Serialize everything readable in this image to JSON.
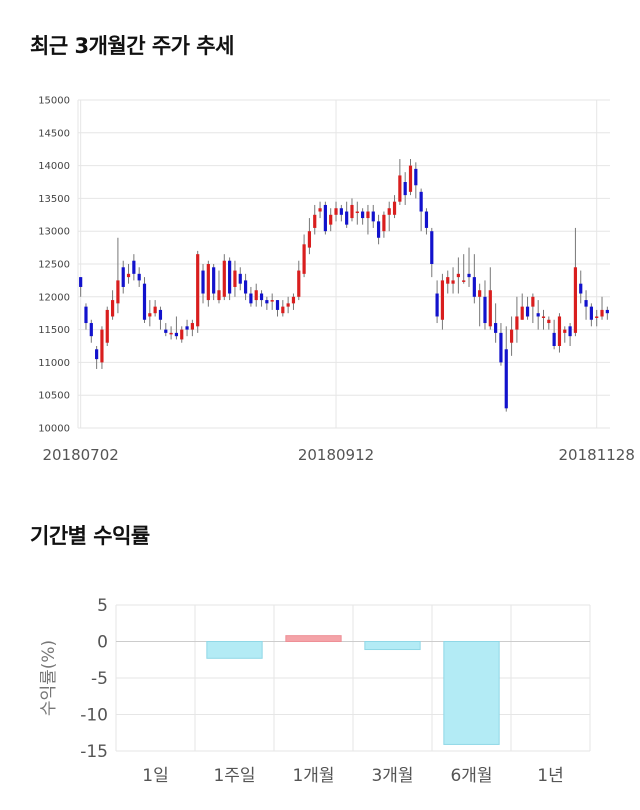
{
  "titles": {
    "candle": "최근 3개월간 주가 추세",
    "returns": "기간별 수익률"
  },
  "colors": {
    "up": "#d91e1e",
    "down": "#1212cc",
    "grid": "#e6e6e6",
    "bar_pos": "#f4a3a8",
    "bar_neg": "#b3ebf5",
    "bar_neg_stroke": "#8fd7e6"
  },
  "chart_data": [
    {
      "type": "candlestick",
      "title": "최근 3개월간 주가 추세",
      "yticks": [
        10000,
        10500,
        11000,
        11500,
        12000,
        12500,
        13000,
        13500,
        14000,
        14500,
        15000
      ],
      "ylim": [
        10000,
        15000
      ],
      "xtick_labels": [
        {
          "index": 0,
          "label": "20180702"
        },
        {
          "index": 48,
          "label": "20180912"
        },
        {
          "index": 97,
          "label": "20181128"
        }
      ],
      "grid": true,
      "candles": [
        [
          12300,
          12150,
          12300,
          12000
        ],
        [
          11850,
          11600,
          11900,
          11500
        ],
        [
          11600,
          11400,
          11650,
          11300
        ],
        [
          11200,
          11050,
          11250,
          10900
        ],
        [
          11000,
          11500,
          11550,
          10900
        ],
        [
          11300,
          11800,
          11850,
          11250
        ],
        [
          11700,
          11950,
          12100,
          11650
        ],
        [
          11900,
          12250,
          12900,
          11750
        ],
        [
          12450,
          12150,
          12550,
          12050
        ],
        [
          12300,
          12350,
          12500,
          12200
        ],
        [
          12550,
          12350,
          12650,
          12250
        ],
        [
          12350,
          12250,
          12450,
          12150
        ],
        [
          12200,
          11650,
          12300,
          11600
        ],
        [
          11700,
          11750,
          11950,
          11550
        ],
        [
          11750,
          11850,
          11950,
          11700
        ],
        [
          11800,
          11650,
          11850,
          11500
        ],
        [
          11500,
          11450,
          11600,
          11400
        ],
        [
          11450,
          11450,
          11550,
          11350
        ],
        [
          11450,
          11400,
          11700,
          11350
        ],
        [
          11350,
          11500,
          11550,
          11300
        ],
        [
          11550,
          11500,
          11650,
          11400
        ],
        [
          11500,
          11600,
          11650,
          11400
        ],
        [
          11550,
          12650,
          12700,
          11450
        ],
        [
          12400,
          12050,
          12500,
          11900
        ],
        [
          11950,
          12500,
          12550,
          11850
        ],
        [
          12450,
          12050,
          12500,
          11950
        ],
        [
          11950,
          12100,
          12400,
          11900
        ],
        [
          12000,
          12550,
          12650,
          11950
        ],
        [
          12550,
          12050,
          12600,
          11950
        ],
        [
          12150,
          12400,
          12550,
          12000
        ],
        [
          12350,
          12200,
          12450,
          12100
        ],
        [
          12250,
          12050,
          12350,
          11950
        ],
        [
          12050,
          11900,
          12150,
          11850
        ],
        [
          11950,
          12100,
          12200,
          11850
        ],
        [
          12050,
          11950,
          12100,
          11850
        ],
        [
          11950,
          11900,
          12000,
          11800
        ],
        [
          11950,
          11950,
          12050,
          11800
        ],
        [
          11950,
          11800,
          11950,
          11700
        ],
        [
          11750,
          11850,
          11950,
          11700
        ],
        [
          11850,
          11900,
          12000,
          11750
        ],
        [
          11900,
          12000,
          12050,
          11800
        ],
        [
          12000,
          12400,
          12550,
          11950
        ],
        [
          12350,
          12800,
          12950,
          12300
        ],
        [
          12750,
          13000,
          13200,
          12650
        ],
        [
          13050,
          13250,
          13400,
          12950
        ],
        [
          13300,
          13350,
          13450,
          13200
        ],
        [
          13400,
          13000,
          13450,
          12950
        ],
        [
          13100,
          13250,
          13350,
          13000
        ],
        [
          13250,
          13350,
          13450,
          13150
        ],
        [
          13350,
          13250,
          13400,
          13150
        ],
        [
          13300,
          13100,
          13450,
          13050
        ],
        [
          13200,
          13400,
          13500,
          13150
        ],
        [
          13300,
          13300,
          13450,
          13100
        ],
        [
          13300,
          13200,
          13350,
          13100
        ],
        [
          13200,
          13300,
          13400,
          12950
        ],
        [
          13300,
          13150,
          13400,
          13050
        ],
        [
          13150,
          12900,
          13250,
          12800
        ],
        [
          13000,
          13250,
          13300,
          12900
        ],
        [
          13250,
          13350,
          13450,
          13000
        ],
        [
          13250,
          13450,
          13550,
          13200
        ],
        [
          13450,
          13850,
          14100,
          13400
        ],
        [
          13750,
          13550,
          13900,
          13400
        ],
        [
          13600,
          14000,
          14100,
          13550
        ],
        [
          13950,
          13700,
          14050,
          13500
        ],
        [
          13600,
          13300,
          13650,
          13000
        ],
        [
          13300,
          13050,
          13350,
          12950
        ],
        [
          13000,
          12500,
          13050,
          12300
        ],
        [
          12050,
          11700,
          12250,
          11600
        ],
        [
          11650,
          12250,
          12350,
          11500
        ],
        [
          12200,
          12300,
          12400,
          12050
        ],
        [
          12200,
          12250,
          12450,
          12050
        ],
        [
          12300,
          12350,
          12600,
          12050
        ],
        [
          12250,
          12250,
          12650,
          12200
        ],
        [
          12350,
          12300,
          12750,
          12150
        ],
        [
          12300,
          12000,
          12650,
          11900
        ],
        [
          12000,
          12100,
          12200,
          11550
        ],
        [
          12000,
          11600,
          12250,
          11500
        ],
        [
          11550,
          12100,
          12450,
          11500
        ],
        [
          11600,
          11450,
          11900,
          11300
        ],
        [
          11450,
          11000,
          11600,
          10950
        ],
        [
          11200,
          10300,
          11550,
          10250
        ],
        [
          11300,
          11500,
          11700,
          11100
        ],
        [
          11500,
          11700,
          12000,
          11300
        ],
        [
          11650,
          11850,
          12050,
          11650
        ],
        [
          11850,
          11700,
          12000,
          11650
        ],
        [
          11850,
          12000,
          12050,
          11600
        ],
        [
          11750,
          11700,
          11950,
          11500
        ],
        [
          11700,
          11700,
          11800,
          11500
        ],
        [
          11600,
          11650,
          11700,
          11500
        ],
        [
          11450,
          11250,
          11650,
          11200
        ],
        [
          11250,
          11700,
          11750,
          11150
        ],
        [
          11450,
          11500,
          11550,
          11300
        ],
        [
          11550,
          11400,
          11600,
          11250
        ],
        [
          11450,
          12450,
          13050,
          11400
        ],
        [
          12200,
          12050,
          12400,
          11900
        ],
        [
          11950,
          11850,
          12100,
          11650
        ],
        [
          11850,
          11650,
          11900,
          11550
        ],
        [
          11700,
          11700,
          11800,
          11550
        ],
        [
          11700,
          11800,
          12000,
          11650
        ],
        [
          11800,
          11750,
          11850,
          11650
        ]
      ]
    },
    {
      "type": "bar",
      "title": "기간별 수익률",
      "categories": [
        "1일",
        "1주일",
        "1개월",
        "3개월",
        "6개월",
        "1년"
      ],
      "values": [
        0,
        -2.3,
        0.8,
        -1.1,
        -14.1,
        0
      ],
      "ylabel": "수익률(%)",
      "yticks": [
        5,
        0,
        -5,
        -10,
        -15
      ],
      "ylim": [
        -15,
        5
      ],
      "grid": true
    }
  ]
}
